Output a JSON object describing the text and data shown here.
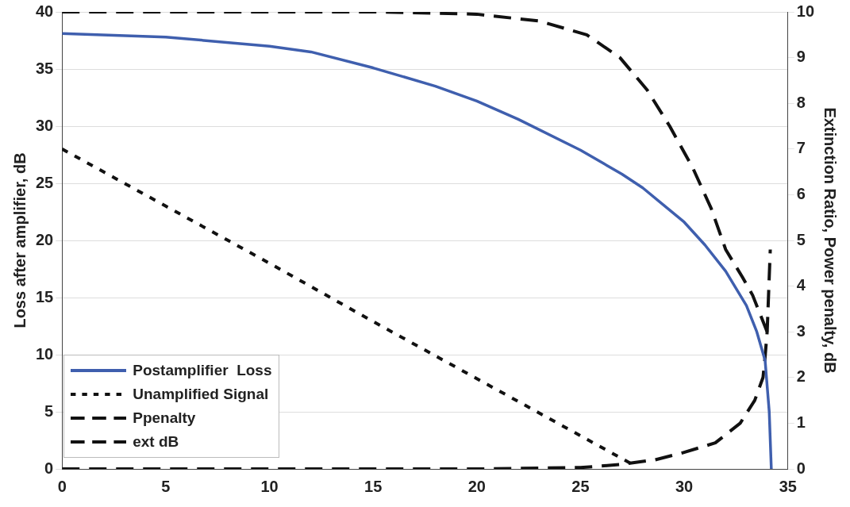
{
  "chart_data": {
    "type": "line",
    "ylabel": "Loss after amplifier, dB",
    "y2label": "Extinction Ratio, Power penalty, dB",
    "xlim": [
      0,
      35
    ],
    "xticks": [
      0,
      5,
      10,
      15,
      20,
      25,
      30,
      35
    ],
    "ylim": [
      0,
      40
    ],
    "yticks": [
      0,
      5,
      10,
      15,
      20,
      25,
      30,
      35,
      40
    ],
    "y2lim": [
      0,
      10
    ],
    "y2ticks": [
      0,
      1,
      2,
      3,
      4,
      5,
      6,
      7,
      8,
      9,
      10
    ],
    "grid": "y",
    "legend": "bottom left",
    "marker": "none",
    "series": [
      {
        "name": "Postamplifier  Loss",
        "color": "#3f5fae",
        "line_style": "solid",
        "axis": "y",
        "x": [
          0,
          5,
          10,
          12,
          15,
          18,
          20,
          22,
          25,
          27,
          28,
          30,
          31,
          32,
          33,
          33.5,
          33.9,
          34.1,
          34.2
        ],
        "values": [
          38.1,
          37.8,
          37,
          36.5,
          35.1,
          33.5,
          32.2,
          30.6,
          27.9,
          25.8,
          24.6,
          21.6,
          19.6,
          17.3,
          14.3,
          12,
          9.5,
          5,
          0
        ]
      },
      {
        "name": "Unamplified Signal",
        "color": "#111111",
        "line_style": "dotted",
        "axis": "y",
        "x": [
          0,
          5,
          10,
          15,
          20,
          25,
          27.6
        ],
        "values": [
          28,
          23,
          18,
          12.9,
          7.9,
          2.9,
          0.3
        ]
      },
      {
        "name": "Ppenalty",
        "color": "#111111",
        "line_style": "dashed",
        "axis": "y2",
        "x": [
          0,
          10,
          20,
          25,
          27,
          28.6,
          29.9,
          31.5,
          32.7,
          33.4,
          33.8,
          33.9,
          34,
          34.15
        ],
        "values": [
          0,
          0,
          0,
          0.03,
          0.1,
          0.2,
          0.35,
          0.57,
          1,
          1.5,
          2,
          2.45,
          3,
          4.8
        ]
      },
      {
        "name": "ext dB",
        "color": "#111111",
        "line_style": "dashed",
        "axis": "y2",
        "x": [
          0,
          15,
          20,
          23,
          25.3,
          26.9,
          28.2,
          29.3,
          30.4,
          31.3,
          32,
          32.8,
          33.3,
          34
        ],
        "values": [
          10,
          10,
          9.95,
          9.8,
          9.5,
          9,
          8.3,
          7.5,
          6.6,
          5.7,
          4.8,
          4.2,
          3.8,
          3
        ]
      }
    ]
  }
}
